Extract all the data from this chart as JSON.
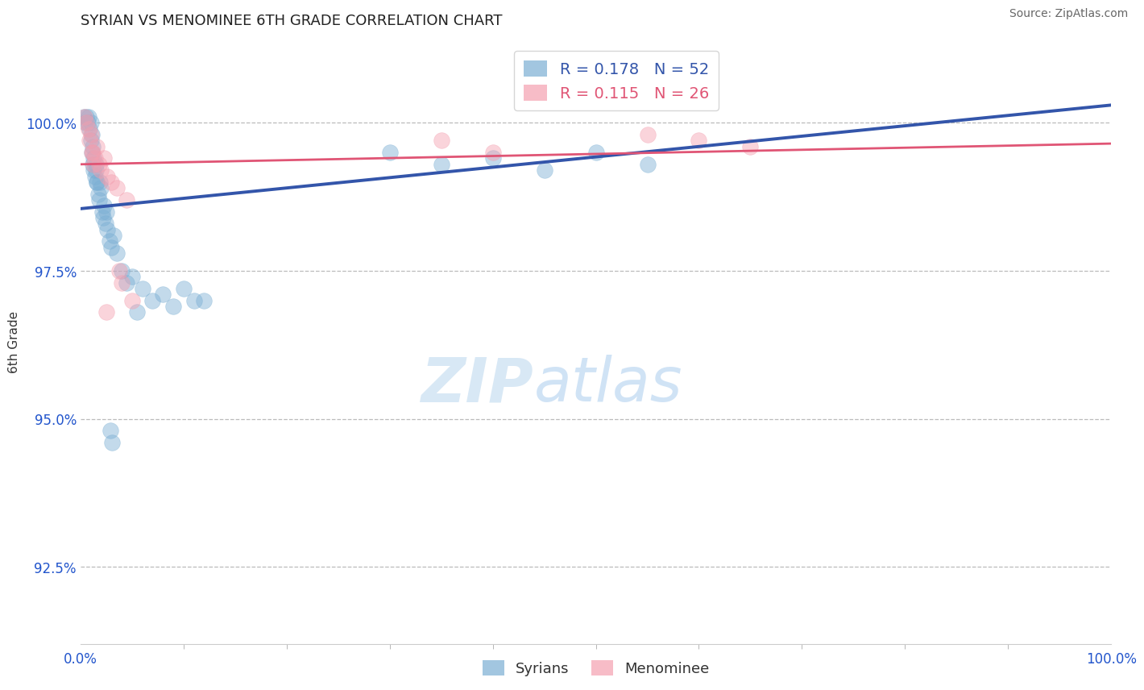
{
  "title": "SYRIAN VS MENOMINEE 6TH GRADE CORRELATION CHART",
  "source": "Source: ZipAtlas.com",
  "ylabel": "6th Grade",
  "ytick_values": [
    92.5,
    95.0,
    97.5,
    100.0
  ],
  "xlim": [
    0.0,
    100.0
  ],
  "ylim": [
    91.2,
    101.4
  ],
  "legend_syrians_r": "0.178",
  "legend_syrians_n": "52",
  "legend_menominee_r": "0.115",
  "legend_menominee_n": "26",
  "blue_color": "#7BAFD4",
  "pink_color": "#F4A0B0",
  "blue_line_color": "#3355AA",
  "pink_line_color": "#E05575",
  "blue_trend_x0": 0,
  "blue_trend_y0": 98.55,
  "blue_trend_x1": 100,
  "blue_trend_y1": 100.3,
  "pink_trend_x0": 0,
  "pink_trend_y0": 99.3,
  "pink_trend_x1": 100,
  "pink_trend_y1": 99.65,
  "syrians_x": [
    0.3,
    0.5,
    0.6,
    0.7,
    0.8,
    0.9,
    1.0,
    1.0,
    1.1,
    1.2,
    1.3,
    1.4,
    1.5,
    1.6,
    1.7,
    1.8,
    1.9,
    2.0,
    2.1,
    2.2,
    2.3,
    2.4,
    2.5,
    2.6,
    2.8,
    3.0,
    3.2,
    3.5,
    4.0,
    4.5,
    5.0,
    5.5,
    6.0,
    7.0,
    8.0,
    9.0,
    10.0,
    11.0,
    12.0,
    30.0,
    35.0,
    40.0,
    45.0,
    50.0,
    55.0,
    1.1,
    1.2,
    1.3,
    1.5,
    1.6,
    2.9,
    3.1
  ],
  "syrians_y": [
    100.1,
    100.0,
    100.1,
    100.0,
    100.1,
    99.9,
    100.0,
    99.7,
    99.5,
    99.3,
    99.2,
    99.1,
    99.3,
    99.0,
    98.8,
    98.7,
    99.0,
    98.9,
    98.5,
    98.4,
    98.6,
    98.3,
    98.5,
    98.2,
    98.0,
    97.9,
    98.1,
    97.8,
    97.5,
    97.3,
    97.4,
    96.8,
    97.2,
    97.0,
    97.1,
    96.9,
    97.2,
    97.0,
    97.0,
    99.5,
    99.3,
    99.4,
    99.2,
    99.5,
    99.3,
    99.8,
    99.6,
    99.4,
    99.2,
    99.0,
    94.8,
    94.6
  ],
  "menominee_x": [
    0.4,
    0.6,
    0.8,
    1.0,
    1.2,
    1.4,
    1.6,
    1.8,
    2.0,
    2.3,
    2.6,
    3.0,
    3.5,
    4.5,
    0.9,
    1.1,
    1.3,
    35.0,
    40.0,
    55.0,
    60.0,
    65.0,
    2.5,
    3.8,
    4.0,
    5.0
  ],
  "menominee_y": [
    100.1,
    100.0,
    99.9,
    99.8,
    99.5,
    99.4,
    99.6,
    99.3,
    99.2,
    99.4,
    99.1,
    99.0,
    98.9,
    98.7,
    99.7,
    99.5,
    99.3,
    99.7,
    99.5,
    99.8,
    99.7,
    99.6,
    96.8,
    97.5,
    97.3,
    97.0
  ]
}
